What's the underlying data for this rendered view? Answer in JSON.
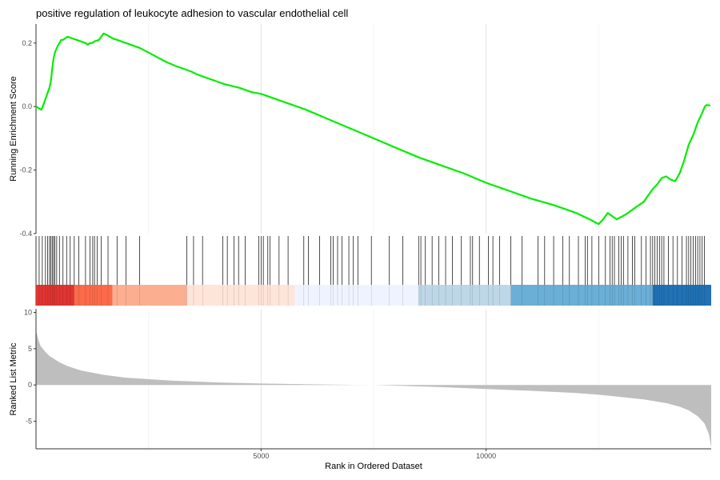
{
  "chart_data": {
    "type": "line",
    "title": "positive regulation of leukocyte adhesion to vascular endothelial cell",
    "xlabel": "Rank in Ordered Dataset",
    "x_ticks": [
      5000,
      10000
    ],
    "xlim": [
      0,
      15000
    ],
    "grid": true,
    "panels": {
      "enrichment": {
        "ylabel": "Running Enrichment Score",
        "ylim": [
          -0.4,
          0.26
        ],
        "y_ticks": [
          -0.4,
          -0.2,
          0.0,
          0.2
        ],
        "y_tick_labels": [
          "-0.4",
          "-0.2",
          "0.0",
          "0.2"
        ],
        "line_color": "#00ee00",
        "series": [
          {
            "x": [
              0,
              120,
              150,
              200,
              250,
              300,
              330,
              360,
              390,
              420,
              450,
              480,
              520,
              560,
              600,
              700,
              800,
              900,
              1000,
              1100,
              1150,
              1200,
              1250,
              1300,
              1400,
              1500,
              1580,
              1700,
              1800,
              1900,
              2000,
              2100,
              2200,
              2300,
              2500,
              2700,
              2900,
              3100,
              3300,
              3450,
              3600,
              3800,
              4000,
              4200,
              4500,
              4800,
              5000,
              5200,
              5400,
              5700,
              6000,
              6500,
              7000,
              7500,
              8000,
              8500,
              9000,
              9500,
              10000,
              10500,
              11000,
              11500,
              12000,
              12300,
              12500,
              12600,
              12700,
              12900,
              13100,
              13300,
              13500,
              13700,
              13800,
              13900,
              14000,
              14100,
              14200,
              14300,
              14400,
              14500,
              14600,
              14700,
              14800,
              14860,
              14900,
              14940,
              14980
            ],
            "y": [
              0.0,
              -0.01,
              0.0,
              0.02,
              0.04,
              0.06,
              0.08,
              0.12,
              0.15,
              0.17,
              0.18,
              0.19,
              0.2,
              0.21,
              0.21,
              0.22,
              0.215,
              0.21,
              0.205,
              0.2,
              0.195,
              0.2,
              0.2,
              0.205,
              0.21,
              0.23,
              0.225,
              0.215,
              0.21,
              0.205,
              0.2,
              0.195,
              0.19,
              0.185,
              0.17,
              0.155,
              0.14,
              0.128,
              0.118,
              0.11,
              0.1,
              0.09,
              0.08,
              0.07,
              0.06,
              0.045,
              0.04,
              0.03,
              0.02,
              0.005,
              -0.01,
              -0.04,
              -0.07,
              -0.1,
              -0.13,
              -0.16,
              -0.185,
              -0.21,
              -0.24,
              -0.265,
              -0.29,
              -0.31,
              -0.335,
              -0.355,
              -0.37,
              -0.355,
              -0.335,
              -0.355,
              -0.34,
              -0.32,
              -0.3,
              -0.26,
              -0.245,
              -0.225,
              -0.22,
              -0.23,
              -0.235,
              -0.21,
              -0.17,
              -0.12,
              -0.09,
              -0.05,
              -0.02,
              0.0,
              0.005,
              0.004,
              0.003
            ]
          }
        ]
      },
      "hits": {
        "positions": [
          70,
          140,
          210,
          260,
          300,
          330,
          360,
          390,
          420,
          460,
          520,
          600,
          680,
          760,
          850,
          950,
          1100,
          1200,
          1260,
          1300,
          1360,
          1450,
          1600,
          1800,
          2000,
          2300,
          3350,
          3500,
          3700,
          4150,
          4250,
          4400,
          4500,
          4650,
          4950,
          5000,
          5050,
          5150,
          5200,
          5400,
          5600,
          5950,
          6050,
          6300,
          6550,
          6600,
          6700,
          6800,
          6950,
          7050,
          7150,
          7450,
          7850,
          8150,
          8500,
          8550,
          8650,
          8800,
          8950,
          9100,
          9250,
          9450,
          9650,
          9700,
          9850,
          10050,
          10150,
          10300,
          10550,
          10800,
          11150,
          11300,
          11500,
          11700,
          11850,
          12050,
          12200,
          12250,
          12350,
          12500,
          12650,
          12750,
          12800,
          12850,
          12950,
          13000,
          13050,
          13150,
          13250,
          13300,
          13450,
          13550,
          13650,
          13700,
          13750,
          13800,
          13850,
          13900,
          13950,
          14050,
          14150,
          14250,
          14350,
          14450,
          14500,
          14550,
          14600,
          14650,
          14700,
          14750,
          14800,
          14850
        ]
      },
      "color_bar": {
        "segments": [
          {
            "from": 0,
            "to": 850,
            "color": "#e03532"
          },
          {
            "from": 850,
            "to": 1700,
            "color": "#fb6a4a"
          },
          {
            "from": 1700,
            "to": 3350,
            "color": "#fcae91"
          },
          {
            "from": 3350,
            "to": 5750,
            "color": "#fee5d9"
          },
          {
            "from": 5750,
            "to": 8500,
            "color": "#eff3ff"
          },
          {
            "from": 8500,
            "to": 10550,
            "color": "#bdd7e7"
          },
          {
            "from": 10550,
            "to": 13700,
            "color": "#6baed6"
          },
          {
            "from": 13700,
            "to": 15000,
            "color": "#2171b5"
          }
        ]
      },
      "ranked": {
        "ylabel": "Ranked List Metric",
        "ylim": [
          -8.8,
          10.5
        ],
        "y_ticks": [
          -5,
          0,
          5,
          10
        ],
        "y_tick_labels": [
          "-5",
          "0",
          "5",
          "10"
        ],
        "fill_color": "#bebebe",
        "curve": {
          "x": [
            0,
            20,
            50,
            100,
            200,
            300,
            500,
            700,
            1000,
            1500,
            2000,
            3000,
            4000,
            5000,
            6000,
            7000,
            7500,
            8000,
            9000,
            10000,
            11000,
            12000,
            12500,
            13000,
            13500,
            14000,
            14300,
            14500,
            14700,
            14850,
            14950,
            15000
          ],
          "y": [
            7.5,
            7.0,
            6.3,
            5.4,
            4.6,
            4.0,
            3.2,
            2.6,
            2.0,
            1.4,
            1.0,
            0.6,
            0.35,
            0.2,
            0.1,
            0.02,
            0.0,
            -0.1,
            -0.3,
            -0.55,
            -0.8,
            -1.1,
            -1.35,
            -1.65,
            -2.0,
            -2.5,
            -3.0,
            -3.5,
            -4.3,
            -5.3,
            -6.8,
            -8.6
          ]
        }
      }
    }
  }
}
